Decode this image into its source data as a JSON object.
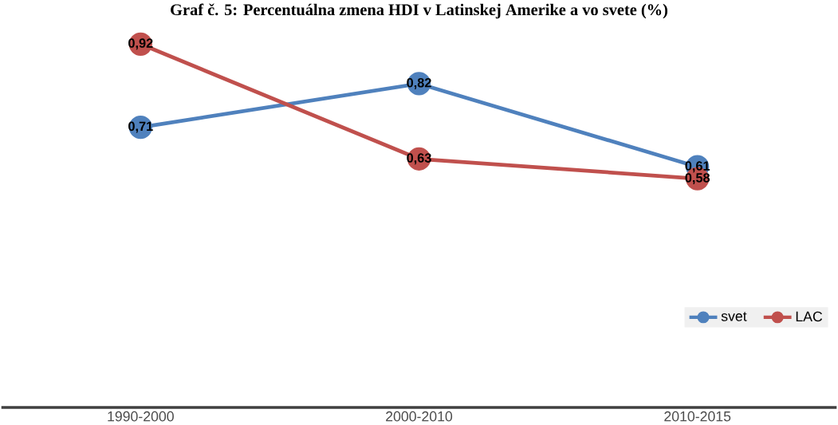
{
  "chart_data": {
    "type": "line",
    "title": "Graf č. 5: Percentuálna zmena HDI v Latinskej Amerike a vo svete (%)",
    "categories": [
      "1990-2000",
      "2000-2010",
      "2010-2015"
    ],
    "series": [
      {
        "name": "svet",
        "color": "#4f81bd",
        "values": [
          0.71,
          0.82,
          0.61
        ],
        "value_labels": [
          "0,71",
          "0,82",
          "0,61"
        ]
      },
      {
        "name": "LAC",
        "color": "#c0504d",
        "values": [
          0.92,
          0.63,
          0.58
        ],
        "value_labels": [
          "0,92",
          "0,63",
          "0,58"
        ]
      }
    ],
    "tick_labels": "x",
    "legend": "bottom right",
    "marker": "circle",
    "line_style": "solid"
  }
}
